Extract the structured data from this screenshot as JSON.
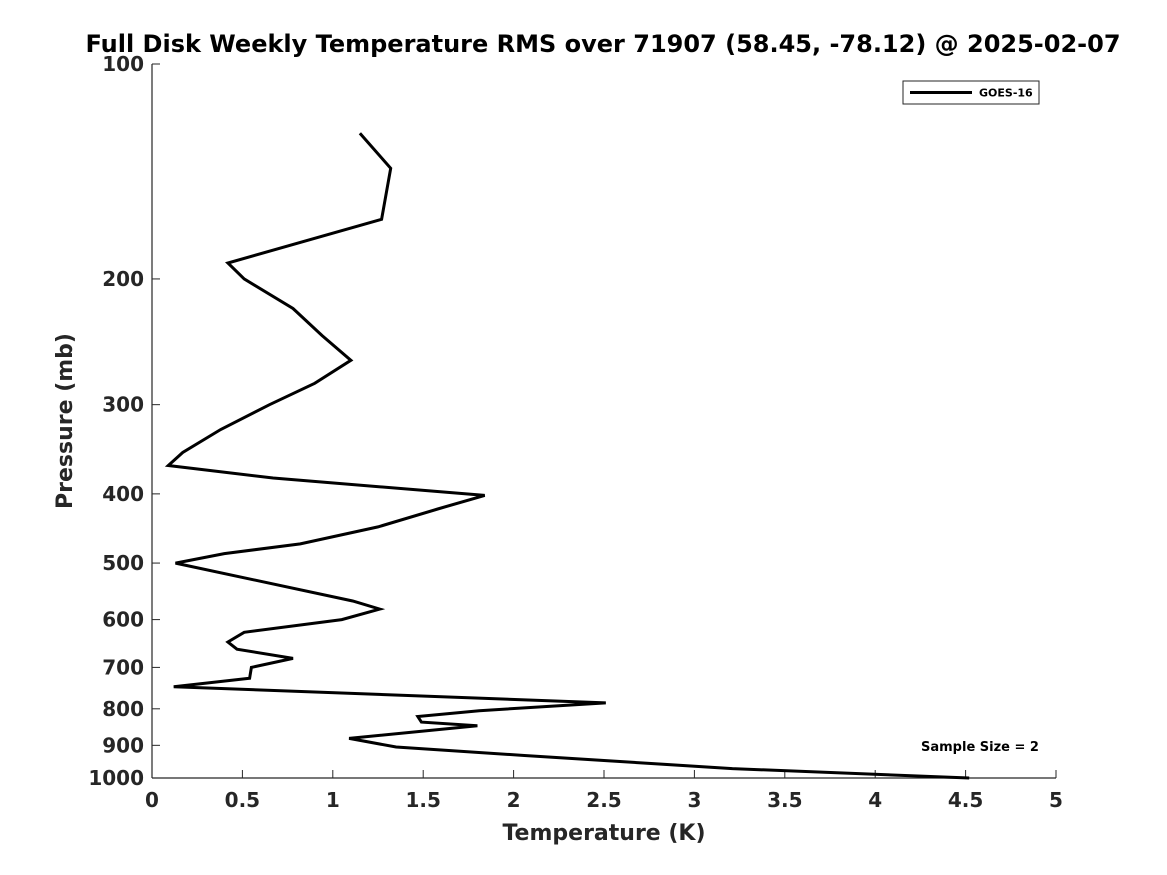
{
  "chart_data": {
    "type": "line",
    "title": "Full Disk Weekly Temperature RMS over 71907 (58.45, -78.12) @ 2025-02-07",
    "xlabel": "Temperature (K)",
    "ylabel": "Pressure (mb)",
    "xlim": [
      0,
      5
    ],
    "ylim": [
      100,
      1000
    ],
    "yscale": "log",
    "y_reversed": true,
    "x_ticks": [
      "0",
      "0.5",
      "1",
      "1.5",
      "2",
      "2.5",
      "3",
      "3.5",
      "4",
      "4.5",
      "5"
    ],
    "y_ticks": [
      "100",
      "200",
      "300",
      "400",
      "500",
      "600",
      "700",
      "800",
      "900",
      "1000"
    ],
    "grid": false,
    "legend_position": "top-right",
    "annotation": "Sample Size = 2",
    "series": [
      {
        "name": "GOES-16",
        "color": "#000000",
        "points": [
          {
            "x": 1.15,
            "y": 125
          },
          {
            "x": 1.32,
            "y": 140
          },
          {
            "x": 1.27,
            "y": 165
          },
          {
            "x": 0.42,
            "y": 190
          },
          {
            "x": 0.51,
            "y": 200
          },
          {
            "x": 0.78,
            "y": 220
          },
          {
            "x": 0.94,
            "y": 240
          },
          {
            "x": 1.1,
            "y": 260
          },
          {
            "x": 0.9,
            "y": 280
          },
          {
            "x": 0.65,
            "y": 300
          },
          {
            "x": 0.38,
            "y": 325
          },
          {
            "x": 0.17,
            "y": 350
          },
          {
            "x": 0.09,
            "y": 365
          },
          {
            "x": 0.67,
            "y": 380
          },
          {
            "x": 1.84,
            "y": 402
          },
          {
            "x": 1.58,
            "y": 420
          },
          {
            "x": 1.25,
            "y": 445
          },
          {
            "x": 0.82,
            "y": 470
          },
          {
            "x": 0.4,
            "y": 485
          },
          {
            "x": 0.13,
            "y": 500
          },
          {
            "x": 1.11,
            "y": 565
          },
          {
            "x": 1.26,
            "y": 580
          },
          {
            "x": 1.05,
            "y": 600
          },
          {
            "x": 0.51,
            "y": 625
          },
          {
            "x": 0.42,
            "y": 645
          },
          {
            "x": 0.47,
            "y": 660
          },
          {
            "x": 0.78,
            "y": 680
          },
          {
            "x": 0.55,
            "y": 700
          },
          {
            "x": 0.54,
            "y": 725
          },
          {
            "x": 0.12,
            "y": 745
          },
          {
            "x": 2.51,
            "y": 785
          },
          {
            "x": 1.81,
            "y": 805
          },
          {
            "x": 1.47,
            "y": 820
          },
          {
            "x": 1.49,
            "y": 835
          },
          {
            "x": 1.8,
            "y": 845
          },
          {
            "x": 1.09,
            "y": 880
          },
          {
            "x": 1.35,
            "y": 905
          },
          {
            "x": 2.06,
            "y": 930
          },
          {
            "x": 3.21,
            "y": 970
          },
          {
            "x": 4.52,
            "y": 1000
          }
        ]
      }
    ]
  }
}
